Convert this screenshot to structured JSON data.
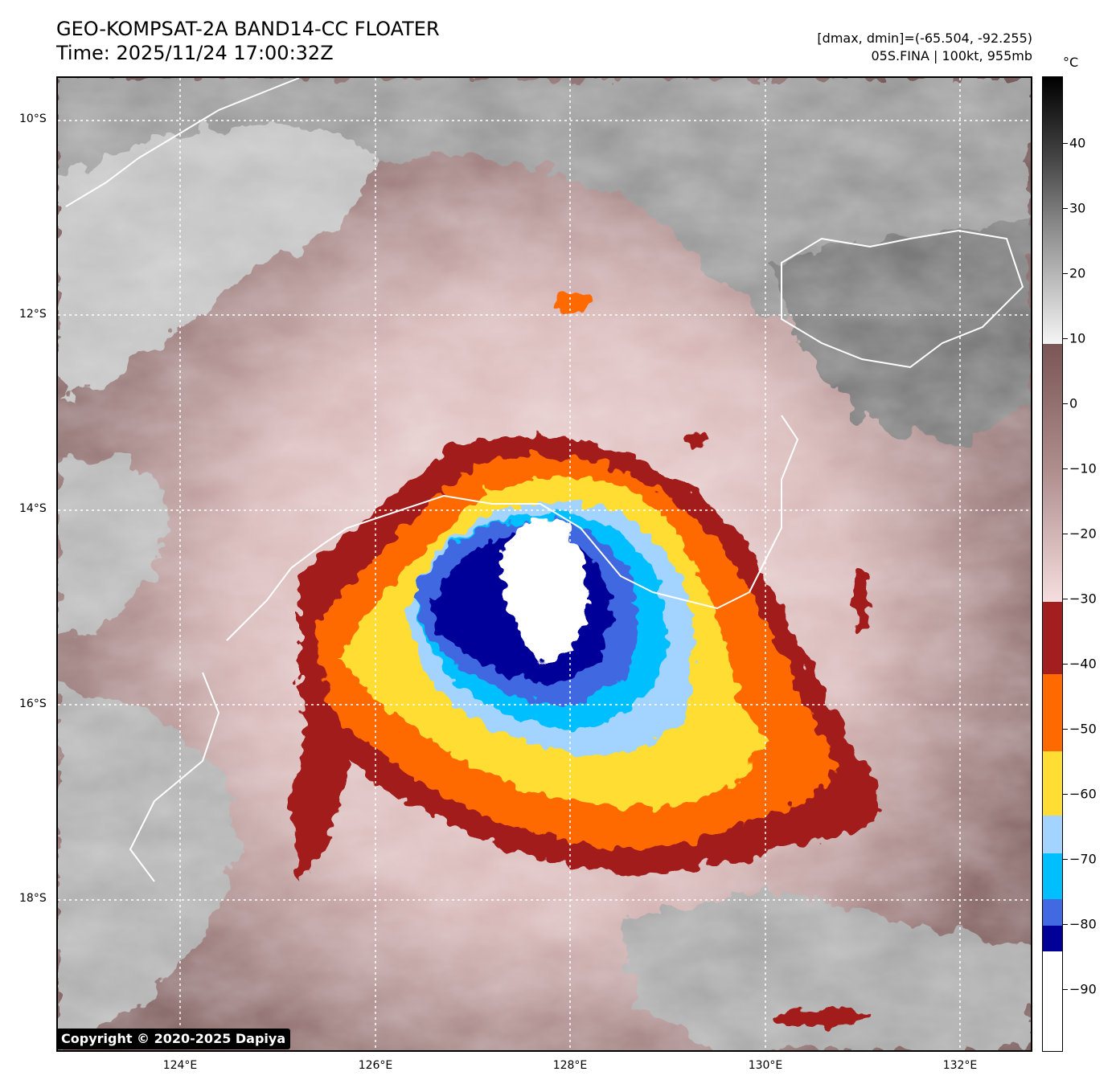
{
  "header": {
    "title_line1": "GEO-KOMPSAT-2A BAND14-CC FLOATER",
    "title_line2": "Time: 2025/11/24 17:00:32Z",
    "info_line1": "[dmax, dmin]=(-65.504, -92.255)",
    "info_line2": "05S.FINA | 100kt, 955mb"
  },
  "colorbar": {
    "unit": "°C",
    "ticks": [
      "40",
      "30",
      "20",
      "10",
      "0",
      "−10",
      "−20",
      "−30",
      "−40",
      "−50",
      "−60",
      "−70",
      "−80",
      "−90"
    ],
    "palette": {
      "gray_top": "#000000",
      "gray_bottom": "#f5f5f5",
      "brown_top": "#7a5656",
      "brown_bottom": "#f6dede",
      "dark_red": "#a31f1f",
      "orange": "#ff6a00",
      "yellow": "#ffdd33",
      "light_blue": "#a3d4ff",
      "cyan": "#00bfff",
      "royal_blue": "#4169e1",
      "navy": "#000099",
      "white": "#ffffff"
    }
  },
  "map": {
    "lat_labels": [
      "10°S",
      "12°S",
      "14°S",
      "16°S",
      "18°S"
    ],
    "lon_labels": [
      "124°E",
      "126°E",
      "128°E",
      "130°E",
      "132°E"
    ],
    "storm": "05S.FINA"
  },
  "copyright": "Copyright © 2020-2025 Dapiya"
}
